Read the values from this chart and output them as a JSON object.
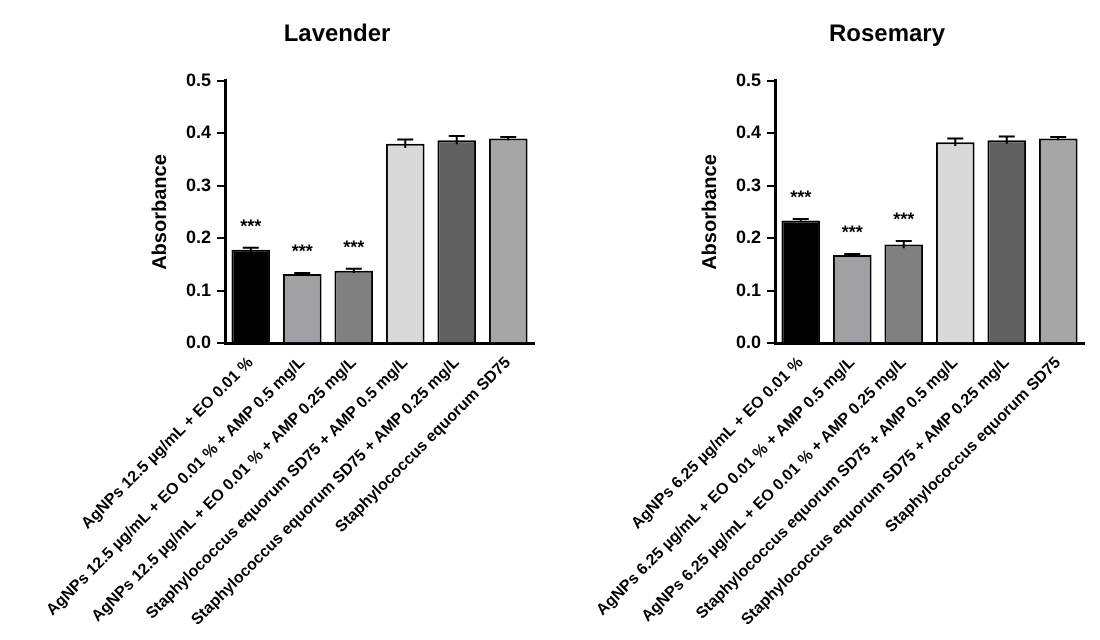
{
  "chart_data": [
    {
      "type": "bar",
      "title": "Lavender",
      "ylabel": "Absorbance",
      "categories": [
        "AgNPs 12.5 µg/mL + EO 0.01 %",
        "AgNPs 12.5 µg/mL + EO 0.01 % + AMP 0.5 mg/L",
        "AgNPs 12.5 µg/mL + EO 0.01 % + AMP 0.25 mg/L",
        "Staphylococcus equorum SD75 + AMP 0.5 mg/L",
        "Staphylococcus equorum SD75 + AMP 0.25 mg/L",
        "Staphylococcus equorum SD75"
      ],
      "values": [
        0.178,
        0.132,
        0.138,
        0.38,
        0.387,
        0.39
      ],
      "errors": [
        0.004,
        0.002,
        0.004,
        0.008,
        0.008,
        0.003
      ],
      "colors": [
        "#000000",
        "#a0a0a4",
        "#808080",
        "#d9d9d9",
        "#606060",
        "#a6a6a6"
      ],
      "ylim": [
        0,
        0.5
      ],
      "yticks": [
        {
          "value": 0,
          "label": "0.0"
        },
        0.1,
        0.2,
        0.3,
        0.4,
        0.5
      ],
      "annotations": [
        {
          "text": "***",
          "x": "AgNPs 12.5 µg/mL + EO 0.01 %",
          "y": 0.178
        },
        {
          "text": "***",
          "x": "AgNPs 12.5 µg/mL + EO 0.01 % + AMP 0.5 mg/L",
          "y": 0.132
        },
        {
          "text": "***",
          "x": "AgNPs 12.5 µg/mL + EO 0.01 % + AMP 0.25 mg/L",
          "y": 0.138
        }
      ]
    },
    {
      "type": "bar",
      "title": "Rosemary",
      "ylabel": "Absorbance",
      "categories": [
        "AgNPs 6.25 µg/mL + EO 0.01 %",
        "AgNPs 6.25 µg/mL + EO 0.01 % + AMP 0.5 mg/L",
        "AgNPs 6.25 µg/mL + EO 0.01 % + AMP 0.25 mg/L",
        "Staphylococcus equorum SD75 + AMP 0.5 mg/L",
        "Staphylococcus equorum SD75 + AMP 0.25 mg/L",
        "Staphylococcus equorum SD75"
      ],
      "values": [
        0.234,
        0.168,
        0.188,
        0.383,
        0.387,
        0.39
      ],
      "errors": [
        0.003,
        0.002,
        0.007,
        0.007,
        0.007,
        0.003
      ],
      "colors": [
        "#000000",
        "#a0a0a4",
        "#808080",
        "#d9d9d9",
        "#606060",
        "#a6a6a6"
      ],
      "ylim": [
        0,
        0.5
      ],
      "yticks": [
        {
          "value": 0,
          "label": "0.0"
        },
        0.1,
        0.2,
        0.3,
        0.4,
        0.5
      ],
      "annotations": [
        {
          "text": "***",
          "x": "AgNPs 6.25 µg/mL + EO 0.01 %",
          "y": 0.234
        },
        {
          "text": "***",
          "x": "AgNPs 6.25 µg/mL + EO 0.01 % + AMP 0.5 mg/L",
          "y": 0.168
        },
        {
          "text": "***",
          "x": "AgNPs 6.25 µg/mL + EO 0.01 % + AMP 0.25 mg/L",
          "y": 0.188
        }
      ]
    }
  ]
}
